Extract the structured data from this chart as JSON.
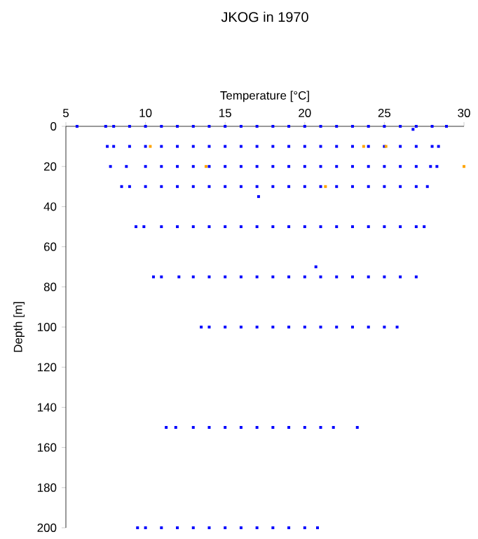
{
  "chart_data": {
    "type": "scatter",
    "title": "JKOG in 1970",
    "xlabel": "Temperature [°C]",
    "ylabel": "Depth [m]",
    "xlim": [
      5,
      30
    ],
    "ylim": [
      200,
      0
    ],
    "xticks": [
      5,
      10,
      15,
      20,
      25,
      30
    ],
    "yticks": [
      0,
      20,
      40,
      60,
      80,
      100,
      120,
      140,
      160,
      180,
      200
    ],
    "marker": "square",
    "series": [
      {
        "color": "#0000ff",
        "x": [
          5.7,
          7.5,
          8,
          9,
          10,
          11,
          12,
          13,
          14,
          15,
          16,
          17,
          18,
          19,
          20,
          21,
          22,
          23,
          24,
          25,
          26,
          27,
          28,
          28.9,
          26.8,
          7.6,
          8,
          9,
          10,
          11,
          12,
          13,
          14,
          15,
          16,
          17,
          18,
          19,
          20,
          21,
          22,
          23,
          24,
          25,
          26,
          27,
          28,
          28.4,
          7.8,
          8.8,
          10,
          11,
          12,
          13,
          14,
          15,
          16,
          17,
          18,
          19,
          20,
          21,
          22,
          23,
          24,
          25,
          26,
          27,
          27.9,
          28.3,
          8.5,
          9,
          10,
          11,
          12,
          13,
          14,
          15,
          16,
          17,
          18,
          19,
          20,
          21,
          22,
          23,
          24,
          25,
          26,
          27,
          27.7,
          17.1,
          9.4,
          9.9,
          11,
          12,
          13,
          14,
          15,
          16,
          17,
          18,
          19,
          20,
          21,
          22,
          23,
          24,
          25,
          26,
          27,
          27.5,
          20.7,
          10.5,
          11.0,
          12.1,
          13,
          14,
          15,
          16,
          17,
          18,
          19,
          20,
          21,
          22,
          23,
          24,
          25,
          26,
          27.0,
          13.5,
          14,
          15,
          16,
          17,
          18,
          19,
          20,
          21,
          22,
          23,
          24,
          25,
          25.8,
          11.3,
          11.9,
          13,
          14,
          15,
          16,
          17,
          18,
          19,
          20,
          21,
          21.8,
          23.3,
          9.5,
          10,
          11,
          12,
          13,
          14,
          15,
          16,
          17,
          18,
          19,
          20,
          20.8
        ],
        "values": [
          0,
          0,
          0,
          0,
          0,
          0,
          0,
          0,
          0,
          0,
          0,
          0,
          0,
          0,
          0,
          0,
          0,
          0,
          0,
          0,
          0,
          0,
          0,
          0,
          1.5,
          10,
          10,
          10,
          10,
          10,
          10,
          10,
          10,
          10,
          10,
          10,
          10,
          10,
          10,
          10,
          10,
          10,
          10,
          10,
          10,
          10,
          10,
          10,
          20,
          20,
          20,
          20,
          20,
          20,
          20,
          20,
          20,
          20,
          20,
          20,
          20,
          20,
          20,
          20,
          20,
          20,
          20,
          20,
          20,
          20,
          30,
          30,
          30,
          30,
          30,
          30,
          30,
          30,
          30,
          30,
          30,
          30,
          30,
          30,
          30,
          30,
          30,
          30,
          30,
          30,
          30,
          35,
          50,
          50,
          50,
          50,
          50,
          50,
          50,
          50,
          50,
          50,
          50,
          50,
          50,
          50,
          50,
          50,
          50,
          50,
          50,
          50,
          70,
          75,
          75,
          75,
          75,
          75,
          75,
          75,
          75,
          75,
          75,
          75,
          75,
          75,
          75,
          75,
          75,
          75,
          75,
          100,
          100,
          100,
          100,
          100,
          100,
          100,
          100,
          100,
          100,
          100,
          100,
          100,
          100,
          150,
          150,
          150,
          150,
          150,
          150,
          150,
          150,
          150,
          150,
          150,
          150,
          150,
          200,
          200,
          200,
          200,
          200,
          200,
          200,
          200,
          200,
          200,
          200,
          200,
          200
        ]
      },
      {
        "color": "#ffa500",
        "x": [
          10.3,
          23.7,
          25.1,
          13.8,
          30.0,
          21.3
        ],
        "values": [
          10,
          10,
          10,
          20,
          20,
          30
        ]
      }
    ]
  }
}
